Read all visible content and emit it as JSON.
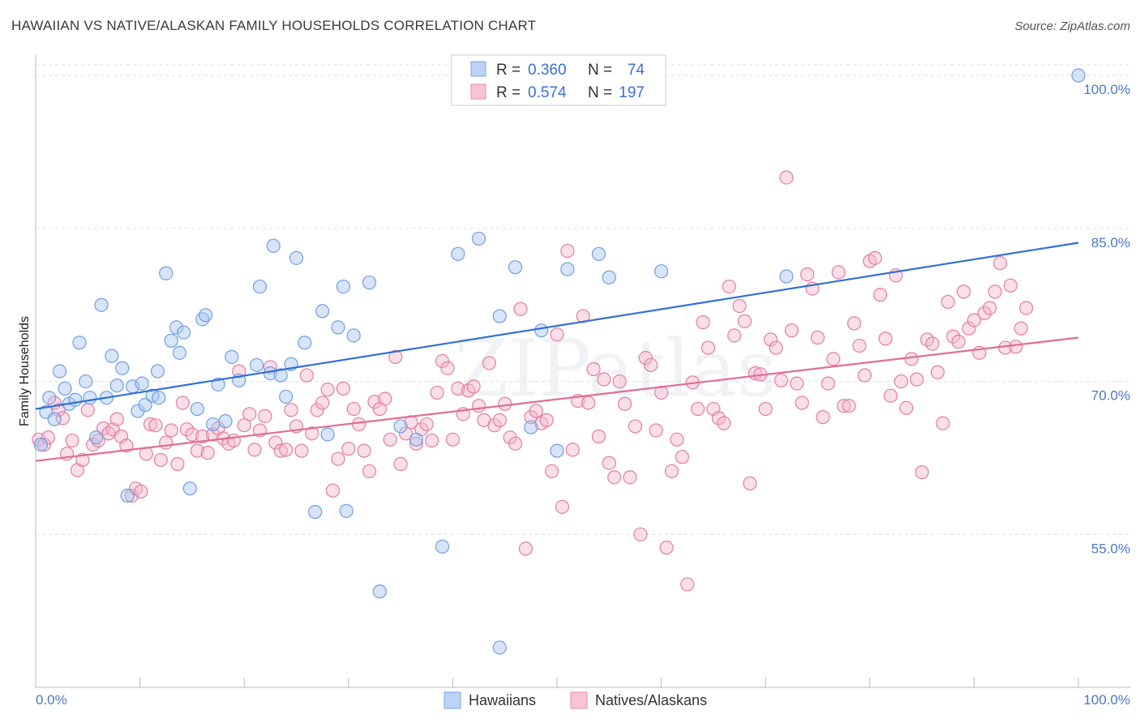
{
  "title": "HAWAIIAN VS NATIVE/ALASKAN FAMILY HOUSEHOLDS CORRELATION CHART",
  "source": "Source: ZipAtlas.com",
  "chart_data": {
    "type": "scatter",
    "ylabel": "Family Households",
    "xlabel": "",
    "xlim": [
      0,
      100
    ],
    "ylim": [
      40,
      102
    ],
    "x_tick_labels": [
      "0.0%",
      "100.0%"
    ],
    "y_ticks": [
      55,
      70,
      85,
      100
    ],
    "y_tick_labels": [
      "55.0%",
      "70.0%",
      "85.0%",
      "100.0%"
    ],
    "grid": true,
    "watermark": "ZIPatlas",
    "legend_box": {
      "r_label": "R =",
      "n_label": "N =",
      "rows": [
        {
          "r": "0.360",
          "n": "74",
          "color": "#7aa6e8",
          "fill": "#bcd3f5"
        },
        {
          "r": "0.574",
          "n": "197",
          "color": "#e88aa8",
          "fill": "#f8c4d5"
        }
      ]
    },
    "series": [
      {
        "name": "Hawaiians",
        "color": "#6f9ee6",
        "fill": "#a9c6f0",
        "trend": [
          [
            0,
            67.3
          ],
          [
            100,
            83.6
          ]
        ],
        "points": [
          [
            0.5,
            63.8
          ],
          [
            1,
            67
          ],
          [
            1.3,
            68.4
          ],
          [
            1.8,
            66.3
          ],
          [
            2.3,
            71
          ],
          [
            2.8,
            69.3
          ],
          [
            3.2,
            67.8
          ],
          [
            3.8,
            68.2
          ],
          [
            4.2,
            73.8
          ],
          [
            4.8,
            70
          ],
          [
            5.2,
            68.4
          ],
          [
            5.8,
            64.5
          ],
          [
            6.3,
            77.5
          ],
          [
            6.8,
            68.4
          ],
          [
            7.3,
            72.5
          ],
          [
            7.8,
            69.6
          ],
          [
            8.3,
            71.3
          ],
          [
            8.8,
            58.8
          ],
          [
            9.3,
            69.5
          ],
          [
            9.8,
            67.1
          ],
          [
            10.2,
            69.8
          ],
          [
            10.5,
            67.7
          ],
          [
            11.2,
            68.6
          ],
          [
            11.7,
            71
          ],
          [
            11.8,
            68.4
          ],
          [
            12.5,
            80.6
          ],
          [
            13,
            74
          ],
          [
            13.5,
            75.3
          ],
          [
            13.8,
            72.8
          ],
          [
            14.2,
            74.8
          ],
          [
            14.8,
            59.5
          ],
          [
            15.5,
            67.3
          ],
          [
            16,
            76.1
          ],
          [
            16.3,
            76.5
          ],
          [
            17,
            65.8
          ],
          [
            17.5,
            69.7
          ],
          [
            18.2,
            66.1
          ],
          [
            18.8,
            72.4
          ],
          [
            19.5,
            70.1
          ],
          [
            21.2,
            71.6
          ],
          [
            21.5,
            79.3
          ],
          [
            22.5,
            70.8
          ],
          [
            22.8,
            83.3
          ],
          [
            23.5,
            70.6
          ],
          [
            24,
            68.5
          ],
          [
            24.5,
            71.7
          ],
          [
            25,
            82.1
          ],
          [
            25.8,
            73.8
          ],
          [
            26.8,
            57.2
          ],
          [
            27.5,
            76.9
          ],
          [
            28,
            64.8
          ],
          [
            29,
            75.3
          ],
          [
            29.5,
            79.3
          ],
          [
            29.8,
            57.3
          ],
          [
            30.5,
            74.5
          ],
          [
            32,
            79.7
          ],
          [
            33,
            49.4
          ],
          [
            35,
            65.6
          ],
          [
            36.5,
            64.3
          ],
          [
            39,
            53.8
          ],
          [
            40.5,
            82.5
          ],
          [
            42.5,
            84
          ],
          [
            44.5,
            43.9
          ],
          [
            44.5,
            76.4
          ],
          [
            46,
            81.2
          ],
          [
            47.5,
            65.5
          ],
          [
            48.5,
            75
          ],
          [
            50,
            63.2
          ],
          [
            51,
            81
          ],
          [
            54,
            82.5
          ],
          [
            55,
            80.2
          ],
          [
            60,
            80.8
          ],
          [
            72,
            80.3
          ],
          [
            100,
            100
          ]
        ]
      },
      {
        "name": "Natives/Alaskans",
        "color": "#e27d9f",
        "fill": "#f5b8cb",
        "trend": [
          [
            0,
            62.2
          ],
          [
            100,
            74.3
          ]
        ],
        "points": [
          [
            0.3,
            64.3
          ],
          [
            0.8,
            63.8
          ],
          [
            1.2,
            64.5
          ],
          [
            1.8,
            67.9
          ],
          [
            2.2,
            67.2
          ],
          [
            2.6,
            66.4
          ],
          [
            3,
            62.9
          ],
          [
            3.5,
            64.2
          ],
          [
            4,
            61.3
          ],
          [
            4.5,
            62.3
          ],
          [
            5,
            67.2
          ],
          [
            5.5,
            63.8
          ],
          [
            6,
            64.2
          ],
          [
            6.5,
            65.4
          ],
          [
            7,
            64.9
          ],
          [
            7.4,
            65.3
          ],
          [
            7.8,
            66.3
          ],
          [
            8.2,
            64.6
          ],
          [
            8.7,
            63.7
          ],
          [
            9.2,
            58.8
          ],
          [
            9.6,
            59.5
          ],
          [
            10.1,
            59.2
          ],
          [
            10.6,
            62.9
          ],
          [
            11,
            65.8
          ],
          [
            11.5,
            65.7
          ],
          [
            12,
            62.3
          ],
          [
            12.5,
            64
          ],
          [
            13,
            65.2
          ],
          [
            13.6,
            61.9
          ],
          [
            14.1,
            67.9
          ],
          [
            14.5,
            65.3
          ],
          [
            15,
            64.8
          ],
          [
            15.5,
            63.2
          ],
          [
            16,
            64.6
          ],
          [
            16.5,
            63
          ],
          [
            17,
            64.8
          ],
          [
            17.5,
            65.4
          ],
          [
            18,
            64.4
          ],
          [
            18.5,
            63.9
          ],
          [
            19,
            64.2
          ],
          [
            19.5,
            71
          ],
          [
            20,
            65.7
          ],
          [
            20.5,
            66.8
          ],
          [
            21,
            63.3
          ],
          [
            21.5,
            65.2
          ],
          [
            22,
            66.6
          ],
          [
            22.5,
            71.4
          ],
          [
            23,
            64
          ],
          [
            23.5,
            63.2
          ],
          [
            24,
            63.3
          ],
          [
            24.5,
            67.2
          ],
          [
            25,
            65.6
          ],
          [
            25.5,
            63.2
          ],
          [
            26,
            70.6
          ],
          [
            26.5,
            64.9
          ],
          [
            27,
            67.2
          ],
          [
            27.5,
            67.9
          ],
          [
            28,
            69.2
          ],
          [
            28.5,
            59.3
          ],
          [
            29,
            62.4
          ],
          [
            29.5,
            69.3
          ],
          [
            30,
            63.4
          ],
          [
            30.5,
            67.3
          ],
          [
            31,
            65.8
          ],
          [
            31.5,
            63.2
          ],
          [
            32,
            61.2
          ],
          [
            32.5,
            68
          ],
          [
            33,
            67.3
          ],
          [
            33.5,
            68.3
          ],
          [
            34,
            64.3
          ],
          [
            34.5,
            72.4
          ],
          [
            35,
            61.9
          ],
          [
            35.5,
            64.9
          ],
          [
            36,
            66
          ],
          [
            36.5,
            63.9
          ],
          [
            37,
            65.3
          ],
          [
            37.5,
            65.8
          ],
          [
            38,
            64.2
          ],
          [
            38.5,
            68.9
          ],
          [
            39,
            72
          ],
          [
            39.5,
            71.3
          ],
          [
            40,
            64.3
          ],
          [
            40.5,
            69.3
          ],
          [
            41,
            66.8
          ],
          [
            41.5,
            69.1
          ],
          [
            42,
            69.5
          ],
          [
            42.5,
            67.6
          ],
          [
            43,
            66.2
          ],
          [
            43.5,
            71.8
          ],
          [
            44,
            65.7
          ],
          [
            44.5,
            66.2
          ],
          [
            45,
            67.8
          ],
          [
            45.5,
            64.5
          ],
          [
            46,
            63.9
          ],
          [
            46.5,
            77.1
          ],
          [
            47,
            53.6
          ],
          [
            47.5,
            66.5
          ],
          [
            48,
            67.1
          ],
          [
            48.5,
            65.9
          ],
          [
            49,
            66.2
          ],
          [
            49.5,
            61.2
          ],
          [
            50,
            74.6
          ],
          [
            50.5,
            57.7
          ],
          [
            51,
            82.8
          ],
          [
            51.5,
            63.3
          ],
          [
            52,
            68.1
          ],
          [
            52.5,
            76.4
          ],
          [
            53,
            67.9
          ],
          [
            53.5,
            71.2
          ],
          [
            54,
            64.6
          ],
          [
            54.5,
            70.2
          ],
          [
            55,
            62
          ],
          [
            55.5,
            60.6
          ],
          [
            56,
            70
          ],
          [
            56.5,
            67.8
          ],
          [
            57,
            60.6
          ],
          [
            57.5,
            65.6
          ],
          [
            58,
            55
          ],
          [
            58.5,
            72.3
          ],
          [
            59,
            71.6
          ],
          [
            59.5,
            65.2
          ],
          [
            60,
            68.9
          ],
          [
            60.5,
            53.7
          ],
          [
            61,
            61.2
          ],
          [
            61.5,
            64.3
          ],
          [
            62,
            62.6
          ],
          [
            62.5,
            50.1
          ],
          [
            63,
            69.9
          ],
          [
            63.5,
            67.3
          ],
          [
            64,
            75.8
          ],
          [
            64.5,
            73.3
          ],
          [
            65,
            67.3
          ],
          [
            65.5,
            66.4
          ],
          [
            66,
            65.9
          ],
          [
            66.5,
            79.3
          ],
          [
            67,
            74.5
          ],
          [
            67.5,
            77.4
          ],
          [
            68,
            75.9
          ],
          [
            68.5,
            60
          ],
          [
            69,
            70.8
          ],
          [
            69.5,
            70.7
          ],
          [
            70,
            67.3
          ],
          [
            70.5,
            74.1
          ],
          [
            71,
            73.3
          ],
          [
            71.5,
            70.1
          ],
          [
            72,
            90
          ],
          [
            72.5,
            75
          ],
          [
            73,
            69.8
          ],
          [
            73.5,
            67.9
          ],
          [
            74,
            80.5
          ],
          [
            74.5,
            79.1
          ],
          [
            75,
            74.3
          ],
          [
            75.5,
            66.5
          ],
          [
            76,
            69.8
          ],
          [
            76.5,
            72.2
          ],
          [
            77,
            80.7
          ],
          [
            77.5,
            67.6
          ],
          [
            78,
            67.6
          ],
          [
            78.5,
            75.7
          ],
          [
            79,
            73.5
          ],
          [
            79.5,
            70.6
          ],
          [
            80,
            81.8
          ],
          [
            80.5,
            82.1
          ],
          [
            81,
            78.5
          ],
          [
            81.5,
            74.2
          ],
          [
            82,
            68.6
          ],
          [
            82.5,
            80.4
          ],
          [
            83,
            70
          ],
          [
            83.5,
            67.4
          ],
          [
            84,
            72.2
          ],
          [
            84.5,
            70.2
          ],
          [
            85,
            61.1
          ],
          [
            85.5,
            74.1
          ],
          [
            86,
            73.7
          ],
          [
            86.5,
            70.9
          ],
          [
            87,
            65.9
          ],
          [
            87.5,
            77.8
          ],
          [
            88,
            74.4
          ],
          [
            88.5,
            73.9
          ],
          [
            89,
            78.8
          ],
          [
            89.5,
            75.2
          ],
          [
            90,
            76
          ],
          [
            90.5,
            72.8
          ],
          [
            91,
            76.7
          ],
          [
            91.5,
            77.2
          ],
          [
            92,
            78.8
          ],
          [
            92.5,
            81.6
          ],
          [
            93,
            73.3
          ],
          [
            93.5,
            79.4
          ],
          [
            94,
            73.4
          ],
          [
            94.5,
            75.2
          ],
          [
            95,
            77.2
          ]
        ]
      }
    ]
  },
  "bottom_legend": [
    {
      "label": "Hawaiians",
      "color": "#7aa6e8",
      "fill": "#bcd3f5"
    },
    {
      "label": "Natives/Alaskans",
      "color": "#e88aa8",
      "fill": "#f8c4d5"
    }
  ]
}
